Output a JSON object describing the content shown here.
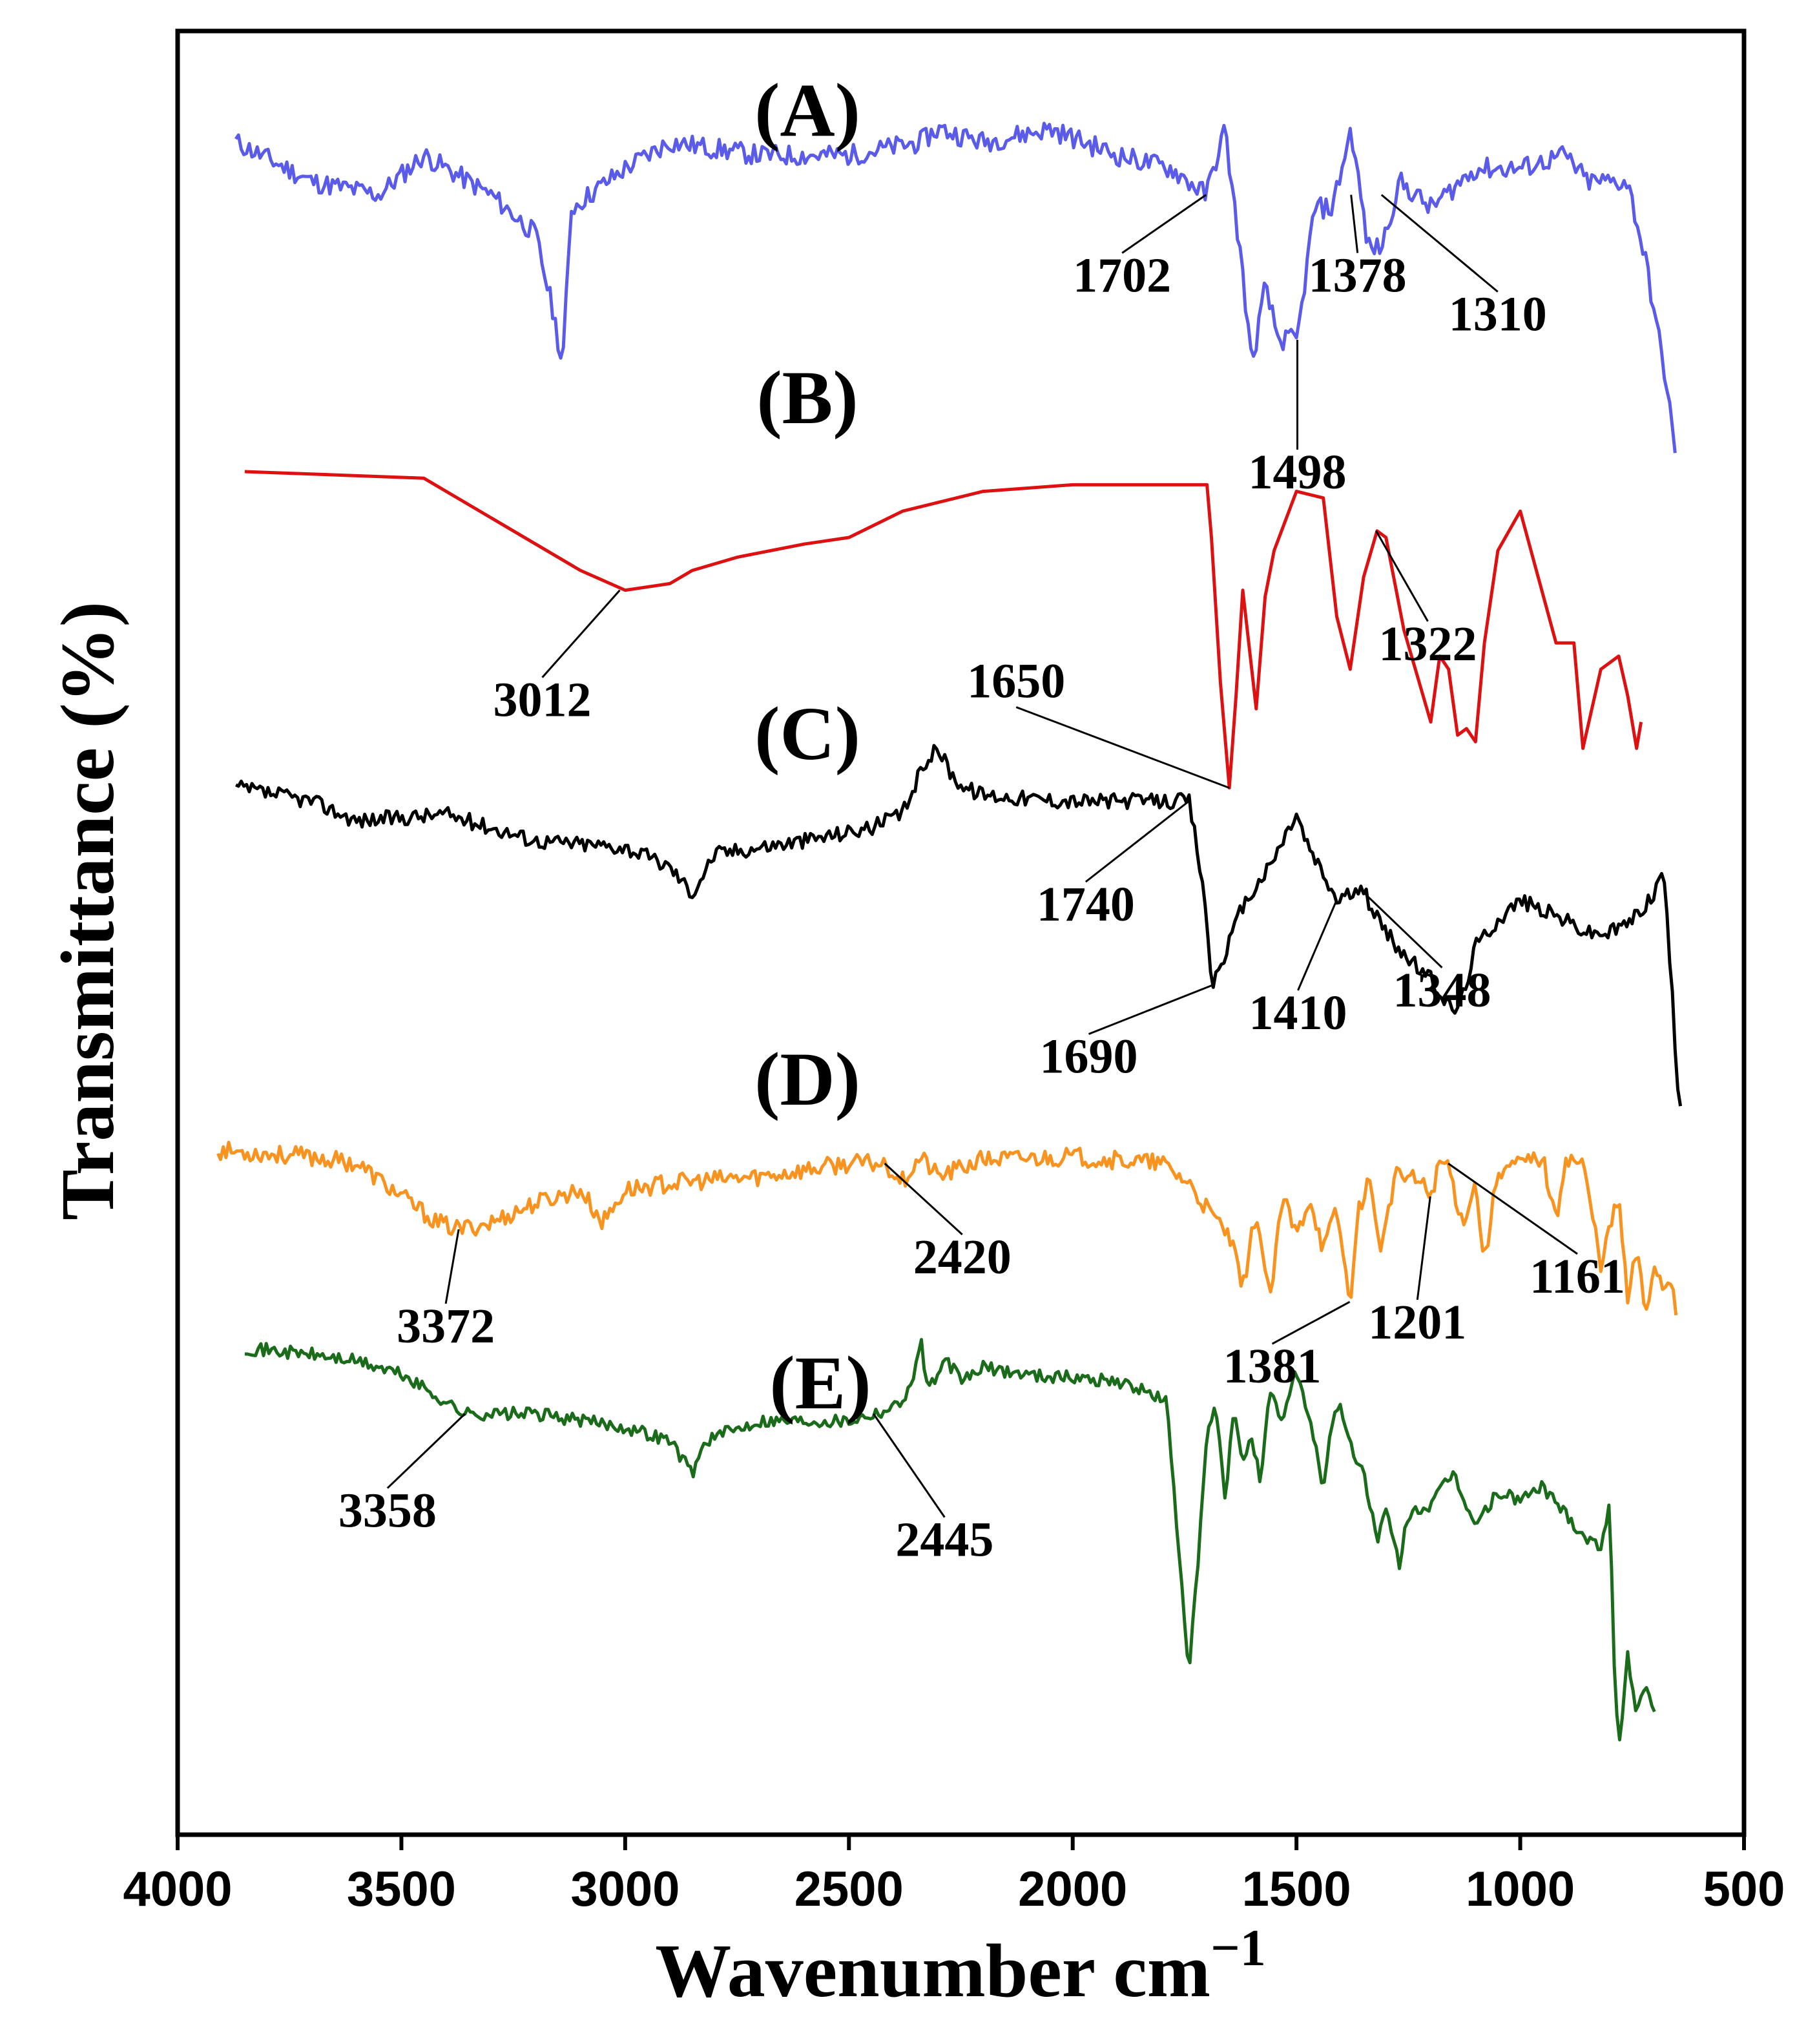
{
  "chart_data": {
    "type": "line",
    "title": "",
    "xlabel": "Wavenumber cm",
    "xlabel_sup": "−1",
    "ylabel": "Transmittance (%)",
    "xlim": [
      4000,
      500
    ],
    "x_ticks": [
      4000,
      3500,
      3000,
      2500,
      2000,
      1500,
      1000,
      500
    ],
    "y_ticks": [],
    "grid": false,
    "series": [
      {
        "name": "(A)",
        "color": "#5b5bea",
        "noise": 0.16,
        "seed": 11,
        "x": [
          3870,
          3700,
          3550,
          3450,
          3300,
          3200,
          3160,
          3140,
          3120,
          3000,
          2900,
          2700,
          2500,
          2340,
          2300,
          2200,
          2050,
          1900,
          1780,
          1702,
          1660,
          1620,
          1600,
          1570,
          1540,
          1498,
          1460,
          1420,
          1378,
          1340,
          1310,
          1270,
          1200,
          1100,
          1000,
          900,
          850,
          800,
          760,
          720,
          690,
          670,
          650
        ],
        "y": [
          9.3,
          9.0,
          8.9,
          9.2,
          8.9,
          8.6,
          8.0,
          7.6,
          8.8,
          9.1,
          9.3,
          9.2,
          9.2,
          9.3,
          9.4,
          9.3,
          9.4,
          9.2,
          9.1,
          8.9,
          9.4,
          8.3,
          7.6,
          8.2,
          7.8,
          7.8,
          8.8,
          8.8,
          9.4,
          8.5,
          8.5,
          9.0,
          8.8,
          9.1,
          9.1,
          9.2,
          9.0,
          9.0,
          9.0,
          8.4,
          7.8,
          7.4,
          6.8
        ],
        "label": "(A)",
        "annotations": [
          {
            "text": "1702",
            "wn": 1702,
            "y": 8.9
          },
          {
            "text": "1498",
            "wn": 1498,
            "y": 7.8
          },
          {
            "text": "1378",
            "wn": 1378,
            "y": 8.9
          },
          {
            "text": "1310",
            "wn": 1310,
            "y": 8.9
          }
        ]
      },
      {
        "name": "(B)",
        "color": "#dd1111",
        "noise": 0.0,
        "seed": 23,
        "x": [
          3850,
          3450,
          3300,
          3100,
          3000,
          2900,
          2850,
          2750,
          2600,
          2500,
          2380,
          2200,
          2000,
          1800,
          1700,
          1690,
          1670,
          1650,
          1635,
          1620,
          1590,
          1570,
          1550,
          1500,
          1440,
          1410,
          1380,
          1350,
          1320,
          1300,
          1260,
          1200,
          1180,
          1160,
          1140,
          1120,
          1100,
          1080,
          1050,
          1000,
          960,
          920,
          880,
          860,
          820,
          780,
          760,
          740,
          730
        ],
        "y": [
          6.8,
          6.75,
          6.45,
          6.05,
          5.9,
          5.95,
          6.05,
          6.15,
          6.25,
          6.3,
          6.5,
          6.65,
          6.7,
          6.7,
          6.7,
          6.3,
          5.2,
          4.4,
          5.1,
          5.9,
          5.0,
          5.85,
          6.2,
          6.65,
          6.6,
          5.7,
          5.3,
          6.0,
          6.35,
          6.3,
          5.6,
          4.9,
          5.4,
          5.3,
          4.8,
          4.85,
          4.75,
          5.5,
          6.2,
          6.5,
          6.0,
          5.5,
          5.5,
          4.7,
          5.3,
          5.4,
          5.1,
          4.7,
          4.9
        ],
        "label": "(B)",
        "annotations": [
          {
            "text": "3012",
            "wn": 3012,
            "y": 5.9
          },
          {
            "text": "1650",
            "wn": 1650,
            "y": 4.4
          },
          {
            "text": "1322",
            "wn": 1322,
            "y": 6.35
          }
        ]
      },
      {
        "name": "(C)",
        "color": "#000000",
        "noise": 0.12,
        "seed": 37,
        "x": [
          3870,
          3700,
          3600,
          3400,
          3200,
          3000,
          2900,
          2850,
          2800,
          2600,
          2450,
          2380,
          2330,
          2300,
          2270,
          2240,
          2200,
          2100,
          2000,
          1900,
          1800,
          1740,
          1720,
          1700,
          1690,
          1670,
          1620,
          1560,
          1500,
          1480,
          1450,
          1410,
          1380,
          1348,
          1300,
          1250,
          1200,
          1150,
          1130,
          1100,
          1050,
          1000,
          900,
          850,
          800,
          750,
          700,
          680,
          660,
          650,
          640
        ],
        "y": [
          4.4,
          4.3,
          4.15,
          4.2,
          4.0,
          3.95,
          3.8,
          3.6,
          3.9,
          4.0,
          4.1,
          4.2,
          4.6,
          4.7,
          4.5,
          4.4,
          4.35,
          4.32,
          4.3,
          4.3,
          4.3,
          4.3,
          3.9,
          3.4,
          2.9,
          3.05,
          3.5,
          3.8,
          4.2,
          4.0,
          3.8,
          3.55,
          3.6,
          3.6,
          3.3,
          3.1,
          2.95,
          2.7,
          2.8,
          3.2,
          3.4,
          3.55,
          3.4,
          3.3,
          3.3,
          3.4,
          3.6,
          3.8,
          2.8,
          2.2,
          2.0
        ],
        "label": "(C)",
        "annotations": [
          {
            "text": "1740",
            "wn": 1740,
            "y": 4.3
          },
          {
            "text": "1690",
            "wn": 1690,
            "y": 2.9
          },
          {
            "text": "1410",
            "wn": 1410,
            "y": 3.55
          },
          {
            "text": "1348",
            "wn": 1348,
            "y": 3.6
          }
        ]
      },
      {
        "name": "(D)",
        "color": "#f7931e",
        "noise": 0.14,
        "seed": 53,
        "x": [
          3910,
          3700,
          3600,
          3500,
          3420,
          3372,
          3300,
          3200,
          3100,
          3050,
          3000,
          2900,
          2700,
          2500,
          2420,
          2380,
          2340,
          2300,
          2200,
          2000,
          1800,
          1740,
          1700,
          1650,
          1620,
          1590,
          1560,
          1530,
          1500,
          1470,
          1440,
          1410,
          1381,
          1360,
          1340,
          1310,
          1280,
          1250,
          1220,
          1201,
          1180,
          1161,
          1130,
          1100,
          1080,
          1050,
          1000,
          950,
          920,
          900,
          860,
          820,
          780,
          760,
          740,
          720,
          700,
          680,
          660,
          650
        ],
        "y": [
          1.65,
          1.6,
          1.55,
          1.3,
          1.1,
          1.05,
          1.1,
          1.25,
          1.35,
          1.1,
          1.35,
          1.4,
          1.45,
          1.55,
          1.55,
          1.42,
          1.6,
          1.45,
          1.58,
          1.6,
          1.55,
          1.4,
          1.2,
          1.0,
          0.6,
          1.2,
          0.5,
          1.3,
          1.0,
          1.3,
          0.9,
          1.2,
          0.5,
          1.2,
          1.45,
          0.9,
          1.45,
          1.45,
          1.4,
          1.3,
          1.55,
          1.55,
          1.1,
          1.4,
          0.8,
          1.5,
          1.55,
          1.6,
          1.1,
          1.6,
          1.55,
          0.8,
          1.3,
          0.5,
          0.9,
          0.4,
          0.8,
          0.6,
          0.7,
          0.35
        ],
        "label": "(D)",
        "annotations": [
          {
            "text": "3372",
            "wn": 3372,
            "y": 1.05
          },
          {
            "text": "2420",
            "wn": 2420,
            "y": 1.55
          },
          {
            "text": "1381",
            "wn": 1381,
            "y": 0.5
          },
          {
            "text": "1201",
            "wn": 1201,
            "y": 1.3
          },
          {
            "text": "1161",
            "wn": 1161,
            "y": 1.55
          }
        ]
      },
      {
        "name": "(E)",
        "color": "#1a6b1a",
        "noise": 0.1,
        "seed": 71,
        "x": [
          3850,
          3700,
          3600,
          3500,
          3358,
          3200,
          3000,
          2900,
          2850,
          2820,
          2700,
          2500,
          2400,
          2360,
          2340,
          2330,
          2320,
          2280,
          2250,
          2200,
          2100,
          1900,
          1790,
          1780,
          1760,
          1740,
          1720,
          1700,
          1680,
          1660,
          1640,
          1620,
          1600,
          1580,
          1560,
          1530,
          1500,
          1470,
          1440,
          1420,
          1400,
          1380,
          1350,
          1320,
          1300,
          1270,
          1250,
          1200,
          1150,
          1100,
          1050,
          1000,
          950,
          900,
          850,
          820,
          800,
          790,
          780,
          760,
          740,
          720,
          700
        ],
        "y": [
          0.15,
          0.1,
          0.05,
          -0.05,
          -0.35,
          -0.35,
          -0.45,
          -0.55,
          -0.8,
          -0.55,
          -0.4,
          -0.4,
          -0.3,
          -0.15,
          0.25,
          -0.05,
          -0.15,
          0.05,
          -0.1,
          0.0,
          -0.05,
          -0.1,
          -0.25,
          -0.7,
          -1.5,
          -2.3,
          -1.5,
          -0.5,
          -0.3,
          -1.0,
          -0.35,
          -0.7,
          -0.5,
          -0.9,
          -0.2,
          -0.4,
          0.0,
          -0.4,
          -0.9,
          -0.4,
          -0.3,
          -0.6,
          -0.8,
          -1.3,
          -1.1,
          -1.5,
          -1.1,
          -1.05,
          -0.8,
          -1.2,
          -0.95,
          -1.0,
          -0.9,
          -1.1,
          -1.3,
          -1.35,
          -1.0,
          -2.3,
          -2.9,
          -2.2,
          -2.6,
          -2.4,
          -2.6
        ],
        "label": "(E)",
        "annotations": [
          {
            "text": "3358",
            "wn": 3358,
            "y": -0.35
          },
          {
            "text": "2445",
            "wn": 2445,
            "y": -0.35
          }
        ]
      }
    ]
  }
}
